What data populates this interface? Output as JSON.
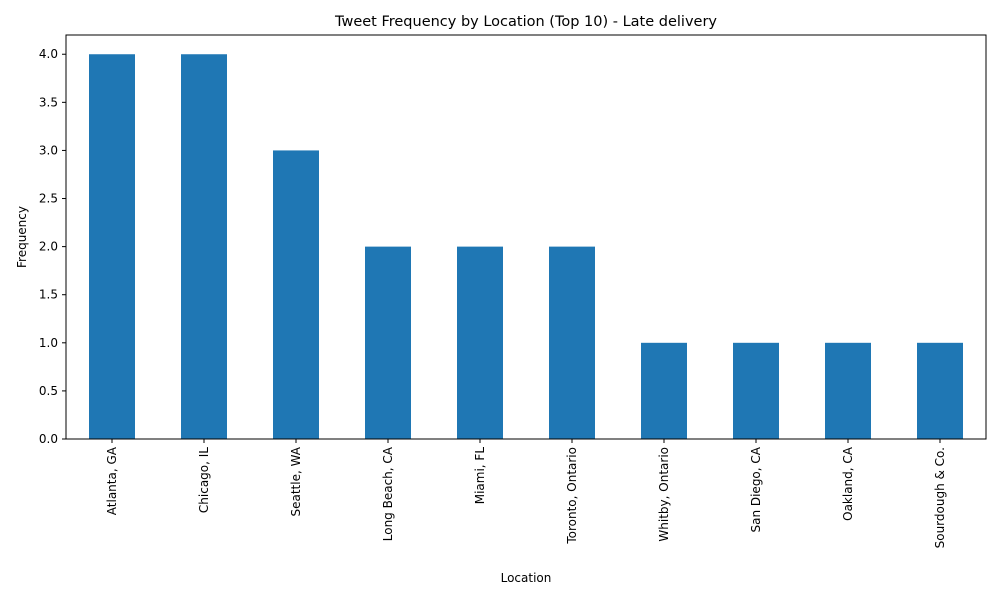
{
  "chart_data": {
    "type": "bar",
    "title": "Tweet Frequency by Location (Top 10) - Late delivery",
    "xlabel": "Location",
    "ylabel": "Frequency",
    "categories": [
      "Atlanta, GA",
      "Chicago, IL",
      "Seattle, WA",
      "Long Beach, CA",
      "Miami, FL",
      "Toronto, Ontario",
      "Whitby, Ontario",
      "San Diego, CA",
      "Oakland, CA",
      "Sourdough & Co."
    ],
    "values": [
      4,
      4,
      3,
      2,
      2,
      2,
      1,
      1,
      1,
      1
    ],
    "ylim": [
      0,
      4.2
    ],
    "yticks": [
      "0.0",
      "0.5",
      "1.0",
      "1.5",
      "2.0",
      "2.5",
      "3.0",
      "3.5",
      "4.0"
    ],
    "bar_color": "#1f77b4",
    "grid": false,
    "legend": "none"
  }
}
